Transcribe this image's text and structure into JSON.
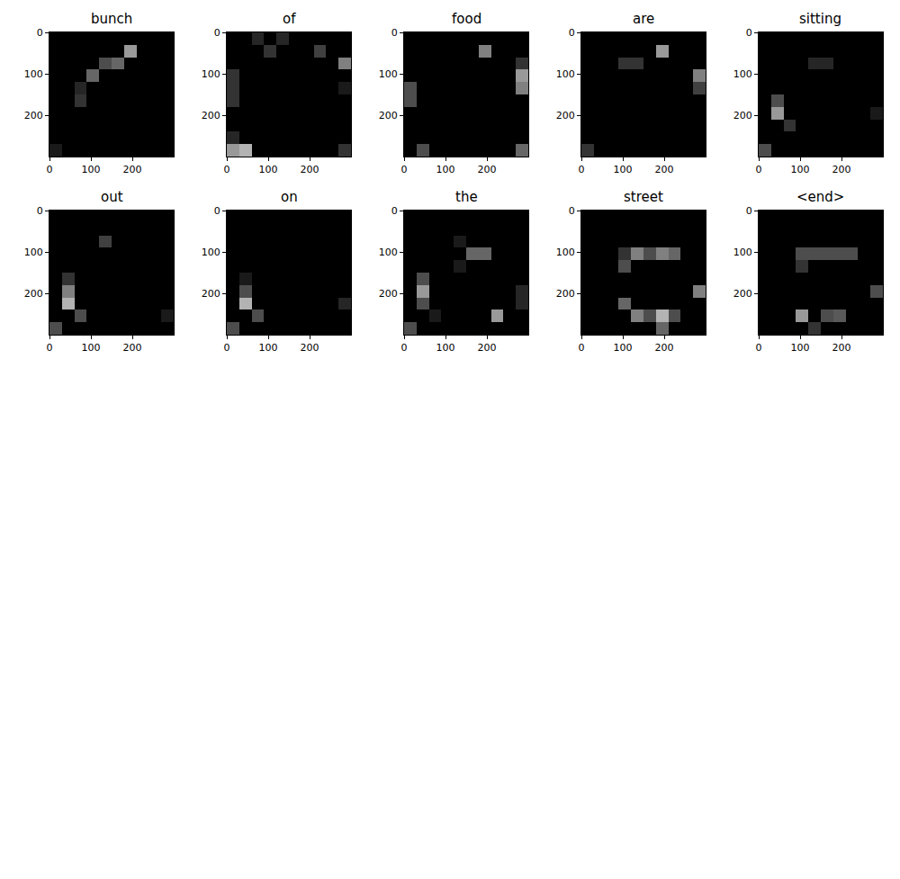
{
  "chart_data": [
    {
      "type": "heatmap",
      "title": "bunch",
      "xlim": [
        0,
        300
      ],
      "ylim": [
        300,
        0
      ],
      "xticks": [
        0,
        100,
        200
      ],
      "yticks": [
        0,
        100,
        200
      ],
      "zlim": [
        0,
        1
      ],
      "cells": [
        [
          0,
          0,
          0,
          0,
          0,
          0,
          0,
          0,
          0,
          0
        ],
        [
          0,
          0,
          0,
          0,
          0,
          0,
          0.6,
          0,
          0,
          0
        ],
        [
          0,
          0,
          0,
          0,
          0.3,
          0.4,
          0,
          0,
          0,
          0
        ],
        [
          0,
          0,
          0,
          0.4,
          0,
          0,
          0,
          0,
          0,
          0
        ],
        [
          0,
          0,
          0.15,
          0,
          0,
          0,
          0,
          0,
          0,
          0
        ],
        [
          0,
          0,
          0.2,
          0,
          0,
          0,
          0,
          0,
          0,
          0
        ],
        [
          0,
          0,
          0,
          0,
          0,
          0,
          0,
          0,
          0,
          0
        ],
        [
          0,
          0,
          0,
          0,
          0,
          0,
          0,
          0,
          0,
          0
        ],
        [
          0,
          0,
          0,
          0,
          0,
          0,
          0,
          0,
          0,
          0
        ],
        [
          0.1,
          0,
          0,
          0,
          0,
          0,
          0,
          0,
          0,
          0
        ]
      ]
    },
    {
      "type": "heatmap",
      "title": "of",
      "xlim": [
        0,
        300
      ],
      "ylim": [
        300,
        0
      ],
      "xticks": [
        0,
        100,
        200
      ],
      "yticks": [
        0,
        100,
        200
      ],
      "zlim": [
        0,
        1
      ],
      "cells": [
        [
          0,
          0,
          0.15,
          0,
          0.15,
          0,
          0,
          0,
          0,
          0
        ],
        [
          0,
          0,
          0,
          0.2,
          0,
          0,
          0,
          0.25,
          0,
          0
        ],
        [
          0,
          0,
          0,
          0,
          0,
          0,
          0,
          0,
          0,
          0.5
        ],
        [
          0.2,
          0,
          0,
          0,
          0,
          0,
          0,
          0,
          0,
          0
        ],
        [
          0.2,
          0,
          0,
          0,
          0,
          0,
          0,
          0,
          0,
          0.1
        ],
        [
          0.2,
          0,
          0,
          0,
          0,
          0,
          0,
          0,
          0,
          0
        ],
        [
          0,
          0,
          0,
          0,
          0,
          0,
          0,
          0,
          0,
          0
        ],
        [
          0,
          0,
          0,
          0,
          0,
          0,
          0,
          0,
          0,
          0
        ],
        [
          0.15,
          0,
          0,
          0,
          0,
          0,
          0,
          0,
          0,
          0
        ],
        [
          0.6,
          0.7,
          0,
          0,
          0,
          0,
          0,
          0,
          0,
          0.2
        ]
      ]
    },
    {
      "type": "heatmap",
      "title": "food",
      "xlim": [
        0,
        300
      ],
      "ylim": [
        300,
        0
      ],
      "xticks": [
        0,
        100,
        200
      ],
      "yticks": [
        0,
        100,
        200
      ],
      "zlim": [
        0,
        1
      ],
      "cells": [
        [
          0,
          0,
          0,
          0,
          0,
          0,
          0,
          0,
          0,
          0
        ],
        [
          0,
          0,
          0,
          0,
          0,
          0,
          0.5,
          0,
          0,
          0
        ],
        [
          0,
          0,
          0,
          0,
          0,
          0,
          0,
          0,
          0,
          0.2
        ],
        [
          0,
          0,
          0,
          0,
          0,
          0,
          0,
          0,
          0,
          0.6
        ],
        [
          0.3,
          0,
          0,
          0,
          0,
          0,
          0,
          0,
          0,
          0.5
        ],
        [
          0.3,
          0,
          0,
          0,
          0,
          0,
          0,
          0,
          0,
          0
        ],
        [
          0,
          0,
          0,
          0,
          0,
          0,
          0,
          0,
          0,
          0
        ],
        [
          0,
          0,
          0,
          0,
          0,
          0,
          0,
          0,
          0,
          0
        ],
        [
          0,
          0,
          0,
          0,
          0,
          0,
          0,
          0,
          0,
          0
        ],
        [
          0,
          0.3,
          0,
          0,
          0,
          0,
          0,
          0,
          0,
          0.4
        ]
      ]
    },
    {
      "type": "heatmap",
      "title": "are",
      "xlim": [
        0,
        300
      ],
      "ylim": [
        300,
        0
      ],
      "xticks": [
        0,
        100,
        200
      ],
      "yticks": [
        0,
        100,
        200
      ],
      "zlim": [
        0,
        1
      ],
      "cells": [
        [
          0,
          0,
          0,
          0,
          0,
          0,
          0,
          0,
          0,
          0
        ],
        [
          0,
          0,
          0,
          0,
          0,
          0,
          0.6,
          0,
          0,
          0
        ],
        [
          0,
          0,
          0,
          0.2,
          0.2,
          0,
          0,
          0,
          0,
          0
        ],
        [
          0,
          0,
          0,
          0,
          0,
          0,
          0,
          0,
          0,
          0.5
        ],
        [
          0,
          0,
          0,
          0,
          0,
          0,
          0,
          0,
          0,
          0.25
        ],
        [
          0,
          0,
          0,
          0,
          0,
          0,
          0,
          0,
          0,
          0
        ],
        [
          0,
          0,
          0,
          0,
          0,
          0,
          0,
          0,
          0,
          0
        ],
        [
          0,
          0,
          0,
          0,
          0,
          0,
          0,
          0,
          0,
          0
        ],
        [
          0,
          0,
          0,
          0,
          0,
          0,
          0,
          0,
          0,
          0
        ],
        [
          0.2,
          0,
          0,
          0,
          0,
          0,
          0,
          0,
          0,
          0
        ]
      ]
    },
    {
      "type": "heatmap",
      "title": "sitting",
      "xlim": [
        0,
        300
      ],
      "ylim": [
        300,
        0
      ],
      "xticks": [
        0,
        100,
        200
      ],
      "yticks": [
        0,
        100,
        200
      ],
      "zlim": [
        0,
        1
      ],
      "cells": [
        [
          0,
          0,
          0,
          0,
          0,
          0,
          0,
          0,
          0,
          0
        ],
        [
          0,
          0,
          0,
          0,
          0,
          0,
          0,
          0,
          0,
          0
        ],
        [
          0,
          0,
          0,
          0,
          0.15,
          0.15,
          0,
          0,
          0,
          0
        ],
        [
          0,
          0,
          0,
          0,
          0,
          0,
          0,
          0,
          0,
          0
        ],
        [
          0,
          0,
          0,
          0,
          0,
          0,
          0,
          0,
          0,
          0
        ],
        [
          0,
          0.3,
          0,
          0,
          0,
          0,
          0,
          0,
          0,
          0
        ],
        [
          0,
          0.6,
          0,
          0,
          0,
          0,
          0,
          0,
          0,
          0.1
        ],
        [
          0,
          0,
          0.2,
          0,
          0,
          0,
          0,
          0,
          0,
          0
        ],
        [
          0,
          0,
          0,
          0,
          0,
          0,
          0,
          0,
          0,
          0
        ],
        [
          0.3,
          0,
          0,
          0,
          0,
          0,
          0,
          0,
          0,
          0
        ]
      ]
    },
    {
      "type": "heatmap",
      "title": "out",
      "xlim": [
        0,
        300
      ],
      "ylim": [
        300,
        0
      ],
      "xticks": [
        0,
        100,
        200
      ],
      "yticks": [
        0,
        100,
        200
      ],
      "zlim": [
        0,
        1
      ],
      "cells": [
        [
          0,
          0,
          0,
          0,
          0,
          0,
          0,
          0,
          0,
          0
        ],
        [
          0,
          0,
          0,
          0,
          0,
          0,
          0,
          0,
          0,
          0
        ],
        [
          0,
          0,
          0,
          0,
          0.25,
          0,
          0,
          0,
          0,
          0
        ],
        [
          0,
          0,
          0,
          0,
          0,
          0,
          0,
          0,
          0,
          0
        ],
        [
          0,
          0,
          0,
          0,
          0,
          0,
          0,
          0,
          0,
          0
        ],
        [
          0,
          0.2,
          0,
          0,
          0,
          0,
          0,
          0,
          0,
          0
        ],
        [
          0,
          0.5,
          0,
          0,
          0,
          0,
          0,
          0,
          0,
          0
        ],
        [
          0,
          0.7,
          0,
          0,
          0,
          0,
          0,
          0,
          0,
          0
        ],
        [
          0,
          0,
          0.3,
          0,
          0,
          0,
          0,
          0,
          0,
          0.1
        ],
        [
          0.3,
          0,
          0,
          0,
          0,
          0,
          0,
          0,
          0,
          0
        ]
      ]
    },
    {
      "type": "heatmap",
      "title": "on",
      "xlim": [
        0,
        300
      ],
      "ylim": [
        300,
        0
      ],
      "xticks": [
        0,
        100,
        200
      ],
      "yticks": [
        0,
        100,
        200
      ],
      "zlim": [
        0,
        1
      ],
      "cells": [
        [
          0,
          0,
          0,
          0,
          0,
          0,
          0,
          0,
          0,
          0
        ],
        [
          0,
          0,
          0,
          0,
          0,
          0,
          0,
          0,
          0,
          0
        ],
        [
          0,
          0,
          0,
          0,
          0,
          0,
          0,
          0,
          0,
          0
        ],
        [
          0,
          0,
          0,
          0,
          0,
          0,
          0,
          0,
          0,
          0
        ],
        [
          0,
          0,
          0,
          0,
          0,
          0,
          0,
          0,
          0,
          0
        ],
        [
          0,
          0.1,
          0,
          0,
          0,
          0,
          0,
          0,
          0,
          0
        ],
        [
          0,
          0.3,
          0,
          0,
          0,
          0,
          0,
          0,
          0,
          0
        ],
        [
          0,
          0.7,
          0,
          0,
          0,
          0,
          0,
          0,
          0,
          0.15
        ],
        [
          0,
          0,
          0.3,
          0,
          0,
          0,
          0,
          0,
          0,
          0
        ],
        [
          0.3,
          0,
          0,
          0,
          0,
          0,
          0,
          0,
          0,
          0
        ]
      ]
    },
    {
      "type": "heatmap",
      "title": "the",
      "xlim": [
        0,
        300
      ],
      "ylim": [
        300,
        0
      ],
      "xticks": [
        0,
        100,
        200
      ],
      "yticks": [
        0,
        100,
        200
      ],
      "zlim": [
        0,
        1
      ],
      "cells": [
        [
          0,
          0,
          0,
          0,
          0,
          0,
          0,
          0,
          0,
          0
        ],
        [
          0,
          0,
          0,
          0,
          0,
          0,
          0,
          0,
          0,
          0
        ],
        [
          0,
          0,
          0,
          0,
          0.1,
          0,
          0,
          0,
          0,
          0
        ],
        [
          0,
          0,
          0,
          0,
          0,
          0.4,
          0.4,
          0,
          0,
          0
        ],
        [
          0,
          0,
          0,
          0,
          0.1,
          0,
          0,
          0,
          0,
          0
        ],
        [
          0,
          0.3,
          0,
          0,
          0,
          0,
          0,
          0,
          0,
          0
        ],
        [
          0,
          0.6,
          0,
          0,
          0,
          0,
          0,
          0,
          0,
          0.15
        ],
        [
          0,
          0.3,
          0,
          0,
          0,
          0,
          0,
          0,
          0,
          0.15
        ],
        [
          0,
          0,
          0.1,
          0,
          0,
          0,
          0,
          0.6,
          0,
          0
        ],
        [
          0.3,
          0,
          0,
          0,
          0,
          0,
          0,
          0,
          0,
          0
        ]
      ]
    },
    {
      "type": "heatmap",
      "title": "street",
      "xlim": [
        0,
        300
      ],
      "ylim": [
        300,
        0
      ],
      "xticks": [
        0,
        100,
        200
      ],
      "yticks": [
        0,
        100,
        200
      ],
      "zlim": [
        0,
        1
      ],
      "cells": [
        [
          0,
          0,
          0,
          0,
          0,
          0,
          0,
          0,
          0,
          0
        ],
        [
          0,
          0,
          0,
          0,
          0,
          0,
          0,
          0,
          0,
          0
        ],
        [
          0,
          0,
          0,
          0,
          0,
          0,
          0,
          0,
          0,
          0
        ],
        [
          0,
          0,
          0,
          0.2,
          0.5,
          0.3,
          0.5,
          0.4,
          0,
          0
        ],
        [
          0,
          0,
          0,
          0.3,
          0,
          0,
          0,
          0,
          0,
          0
        ],
        [
          0,
          0,
          0,
          0,
          0,
          0,
          0,
          0,
          0,
          0
        ],
        [
          0,
          0,
          0,
          0,
          0,
          0,
          0,
          0,
          0,
          0.5
        ],
        [
          0,
          0,
          0,
          0.4,
          0,
          0,
          0,
          0,
          0,
          0
        ],
        [
          0,
          0,
          0,
          0,
          0.5,
          0.3,
          0.7,
          0.3,
          0,
          0
        ],
        [
          0,
          0,
          0,
          0,
          0,
          0,
          0.4,
          0,
          0,
          0
        ]
      ]
    },
    {
      "type": "heatmap",
      "title": "<end>",
      "xlim": [
        0,
        300
      ],
      "ylim": [
        300,
        0
      ],
      "xticks": [
        0,
        100,
        200
      ],
      "yticks": [
        0,
        100,
        200
      ],
      "zlim": [
        0,
        1
      ],
      "cells": [
        [
          0,
          0,
          0,
          0,
          0,
          0,
          0,
          0,
          0,
          0
        ],
        [
          0,
          0,
          0,
          0,
          0,
          0,
          0,
          0,
          0,
          0
        ],
        [
          0,
          0,
          0,
          0,
          0,
          0,
          0,
          0,
          0,
          0
        ],
        [
          0,
          0,
          0,
          0.3,
          0.3,
          0.3,
          0.3,
          0.3,
          0,
          0
        ],
        [
          0,
          0,
          0,
          0.2,
          0,
          0,
          0,
          0,
          0,
          0
        ],
        [
          0,
          0,
          0,
          0,
          0,
          0,
          0,
          0,
          0,
          0
        ],
        [
          0,
          0,
          0,
          0,
          0,
          0,
          0,
          0,
          0,
          0.3
        ],
        [
          0,
          0,
          0,
          0,
          0,
          0,
          0,
          0,
          0,
          0
        ],
        [
          0,
          0,
          0,
          0.6,
          0,
          0.3,
          0.35,
          0,
          0,
          0
        ],
        [
          0,
          0,
          0,
          0,
          0.2,
          0,
          0,
          0,
          0,
          0
        ]
      ]
    }
  ]
}
